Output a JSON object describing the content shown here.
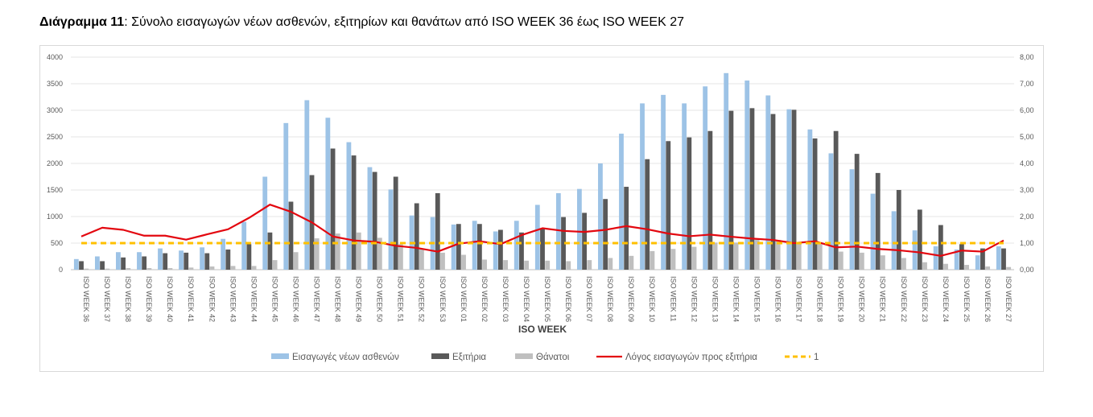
{
  "caption": {
    "prefix": "Διάγραμμα 11",
    "text": ": Σύνολο εισαγωγών νέων ασθενών, εξιτηρίων και θανάτων από ISO WEEK 36 έως ISO WEEK 27"
  },
  "chart_data": {
    "type": "bar",
    "title": "",
    "xlabel": "ISO WEEK",
    "ylabel": "",
    "ylim": [
      0,
      4000
    ],
    "y2lim": [
      0,
      8
    ],
    "y_ticks": [
      "0",
      "500",
      "1000",
      "1500",
      "2000",
      "2500",
      "3000",
      "3500",
      "4000"
    ],
    "y2_ticks": [
      "0,00",
      "1,00",
      "2,00",
      "3,00",
      "4,00",
      "5,00",
      "6,00",
      "7,00",
      "8,00"
    ],
    "grid": true,
    "legend_position": "bottom",
    "categories": [
      "ISO WEEK 36",
      "ISO WEEK 37",
      "ISO WEEK 38",
      "ISO WEEK 39",
      "ISO WEEK 40",
      "ISO WEEK 41",
      "ISO WEEK 42",
      "ISO WEEK 43",
      "ISO WEEK 44",
      "ISO WEEK 45",
      "ISO WEEK 46",
      "ISO WEEK 47",
      "ISO WEEK 48",
      "ISO WEEK 49",
      "ISO WEEK 50",
      "ISO WEEK 51",
      "ISO WEEK 52",
      "ISO WEEK 53",
      "ISO WEEK 01",
      "ISO WEEK 02",
      "ISO WEEK 03",
      "ISO WEEK 04",
      "ISO WEEK 05",
      "ISO WEEK 06",
      "ISO WEEK 07",
      "ISO WEEK 08",
      "ISO WEEK 09",
      "ISO WEEK 10",
      "ISO WEEK 11",
      "ISO WEEK 12",
      "ISO WEEK 13",
      "ISO WEEK 14",
      "ISO WEEK 15",
      "ISO WEEK 16",
      "ISO WEEK 17",
      "ISO WEEK 18",
      "ISO WEEK 19",
      "ISO WEEK 20",
      "ISO WEEK 21",
      "ISO WEEK 22",
      "ISO WEEK 23",
      "ISO WEEK 24",
      "ISO WEEK 25",
      "ISO WEEK 26",
      "ISO WEEK 27"
    ],
    "series": [
      {
        "name": "Εισαγωγές νέων ασθενών",
        "kind": "bar",
        "axis": "left",
        "color": "#9dc3e6",
        "values": [
          200,
          250,
          330,
          330,
          400,
          360,
          420,
          580,
          900,
          1750,
          2760,
          3190,
          2860,
          2400,
          1930,
          1510,
          1020,
          990,
          850,
          920,
          720,
          920,
          1220,
          1440,
          1520,
          2000,
          2560,
          3130,
          3290,
          3130,
          3450,
          3700,
          3560,
          3280,
          3020,
          2640,
          2190,
          1890,
          1430,
          1100,
          740,
          440,
          380,
          270,
          440
        ]
      },
      {
        "name": "Εξιτήρια",
        "kind": "bar",
        "axis": "left",
        "color": "#595959",
        "values": [
          160,
          160,
          230,
          250,
          310,
          320,
          310,
          380,
          480,
          700,
          1280,
          1780,
          2280,
          2150,
          1840,
          1750,
          1250,
          1440,
          860,
          860,
          750,
          700,
          780,
          990,
          1070,
          1330,
          1560,
          2080,
          2420,
          2490,
          2610,
          2990,
          3040,
          2930,
          3010,
          2470,
          2610,
          2180,
          1820,
          1500,
          1130,
          840,
          480,
          400,
          400
        ]
      },
      {
        "name": "Θάνατοι",
        "kind": "bar",
        "axis": "left",
        "color": "#bfbfbf",
        "values": [
          20,
          20,
          30,
          30,
          30,
          40,
          60,
          70,
          70,
          180,
          330,
          590,
          680,
          700,
          600,
          480,
          400,
          320,
          280,
          190,
          180,
          170,
          170,
          160,
          180,
          220,
          260,
          350,
          390,
          430,
          510,
          510,
          580,
          560,
          500,
          480,
          340,
          320,
          270,
          220,
          140,
          110,
          90,
          60,
          50
        ]
      },
      {
        "name": "Λόγος εισαγωγών προς εξιτήρια",
        "kind": "line",
        "axis": "right",
        "color": "#e3070f",
        "values": [
          1.25,
          1.58,
          1.5,
          1.28,
          1.28,
          1.13,
          1.33,
          1.52,
          1.95,
          2.45,
          2.18,
          1.78,
          1.25,
          1.1,
          1.05,
          0.9,
          0.82,
          0.68,
          0.98,
          1.07,
          0.96,
          1.3,
          1.56,
          1.46,
          1.42,
          1.5,
          1.64,
          1.52,
          1.36,
          1.26,
          1.32,
          1.24,
          1.17,
          1.12,
          1.0,
          1.07,
          0.84,
          0.87,
          0.78,
          0.73,
          0.65,
          0.52,
          0.72,
          0.68,
          1.1
        ]
      },
      {
        "name": "1",
        "kind": "dashed-line",
        "axis": "right",
        "color": "#ffc000",
        "values": [
          1,
          1,
          1,
          1,
          1,
          1,
          1,
          1,
          1,
          1,
          1,
          1,
          1,
          1,
          1,
          1,
          1,
          1,
          1,
          1,
          1,
          1,
          1,
          1,
          1,
          1,
          1,
          1,
          1,
          1,
          1,
          1,
          1,
          1,
          1,
          1,
          1,
          1,
          1,
          1,
          1,
          1,
          1,
          1,
          1
        ]
      }
    ]
  }
}
